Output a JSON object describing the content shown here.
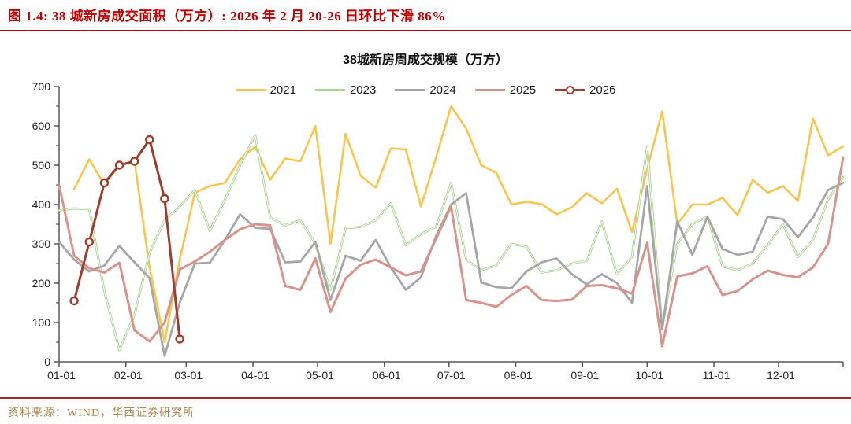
{
  "figure_title": "图 1.4: 38 城新房成交面积（万方）: 2026 年 2 月 20-26 日环比下滑 86%",
  "chart_title": "38城新房周成交规模（万方）",
  "source_note": "资料来源：WIND，华西证券研究所",
  "colors": {
    "title_red": "#c00000",
    "rule_red": "#9e2b26",
    "source_gold": "#a98a4f",
    "axis": "#595959",
    "tick_label": "#262626"
  },
  "chart_data": {
    "type": "line",
    "title": "38城新房周成交规模（万方）",
    "ylabel": "",
    "xlabel": "",
    "ylim": [
      0,
      700
    ],
    "y_ticks": [
      0,
      100,
      200,
      300,
      400,
      500,
      600,
      700
    ],
    "y_minor_step": 50,
    "grid": "off",
    "legend_position": "top",
    "x_unit": "week",
    "weeks_total": 53,
    "x_tick_labels": [
      "01-01",
      "02-01",
      "03-01",
      "04-01",
      "05-01",
      "06-01",
      "07-01",
      "08-01",
      "09-01",
      "10-01",
      "11-01",
      "12-01"
    ],
    "x_tick_month_days": [
      0,
      31,
      59,
      90,
      120,
      151,
      181,
      212,
      243,
      273,
      304,
      334
    ],
    "x_axis_end_day": 364,
    "series": [
      {
        "name": "2021",
        "color": "#f8c64d",
        "width": 2.6,
        "marker": "none",
        "values": [
          null,
          440,
          515,
          450,
          500,
          510,
          240,
          50,
          260,
          430,
          447,
          455,
          515,
          547,
          463,
          517,
          510,
          600,
          300,
          580,
          473,
          443,
          543,
          540,
          395,
          520,
          650,
          593,
          500,
          480,
          400,
          407,
          401,
          375,
          393,
          429,
          403,
          440,
          330,
          490,
          637,
          350,
          400,
          400,
          417,
          373,
          463,
          430,
          447,
          409,
          619,
          525,
          548
        ]
      },
      {
        "name": "2023",
        "color": "#a9d18e",
        "width": 2.8,
        "marker": "none",
        "hollow": true,
        "values": [
          385,
          390,
          388,
          180,
          30,
          120,
          277,
          360,
          395,
          437,
          333,
          413,
          500,
          577,
          367,
          347,
          360,
          300,
          183,
          340,
          343,
          360,
          403,
          297,
          325,
          343,
          455,
          260,
          233,
          245,
          300,
          293,
          227,
          233,
          250,
          257,
          357,
          223,
          267,
          548,
          87,
          300,
          350,
          370,
          243,
          233,
          250,
          297,
          350,
          267,
          310,
          413,
          470
        ]
      },
      {
        "name": "2024",
        "color": "#a6a6a6",
        "width": 2.8,
        "marker": "none",
        "values": [
          305,
          260,
          230,
          245,
          295,
          253,
          213,
          15,
          150,
          250,
          252,
          310,
          375,
          341,
          338,
          253,
          255,
          305,
          157,
          270,
          257,
          310,
          240,
          183,
          215,
          320,
          400,
          429,
          202,
          190,
          187,
          230,
          253,
          263,
          223,
          197,
          223,
          200,
          150,
          447,
          83,
          357,
          272,
          369,
          287,
          272,
          280,
          369,
          363,
          317,
          367,
          437,
          455
        ]
      },
      {
        "name": "2025",
        "color": "#d9938a",
        "width": 3,
        "marker": "none",
        "values": [
          450,
          270,
          238,
          227,
          252,
          80,
          52,
          100,
          235,
          255,
          280,
          310,
          337,
          350,
          347,
          193,
          183,
          263,
          127,
          212,
          247,
          260,
          240,
          220,
          230,
          313,
          395,
          157,
          150,
          140,
          170,
          193,
          157,
          155,
          158,
          193,
          195,
          187,
          173,
          303,
          40,
          217,
          225,
          243,
          170,
          180,
          210,
          232,
          221,
          215,
          240,
          300,
          520
        ]
      },
      {
        "name": "2026",
        "color": "#9e3d2c",
        "width": 3,
        "marker": "circle",
        "values": [
          null,
          155,
          305,
          455,
          500,
          510,
          565,
          415,
          58
        ]
      }
    ]
  }
}
